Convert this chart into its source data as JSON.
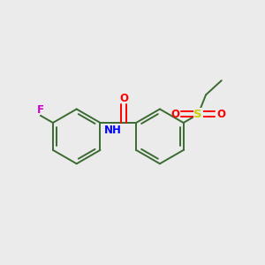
{
  "background_color": "#ebebeb",
  "bond_color": "#3a6b30",
  "atom_colors": {
    "F": "#cc00cc",
    "O": "#ff0000",
    "N": "#0000ff",
    "S": "#cccc00",
    "C": "#3a6b30",
    "H": "#3a6b30"
  },
  "figsize": [
    3.0,
    3.0
  ],
  "dpi": 100,
  "bond_lw": 1.4,
  "font_size": 8.5
}
